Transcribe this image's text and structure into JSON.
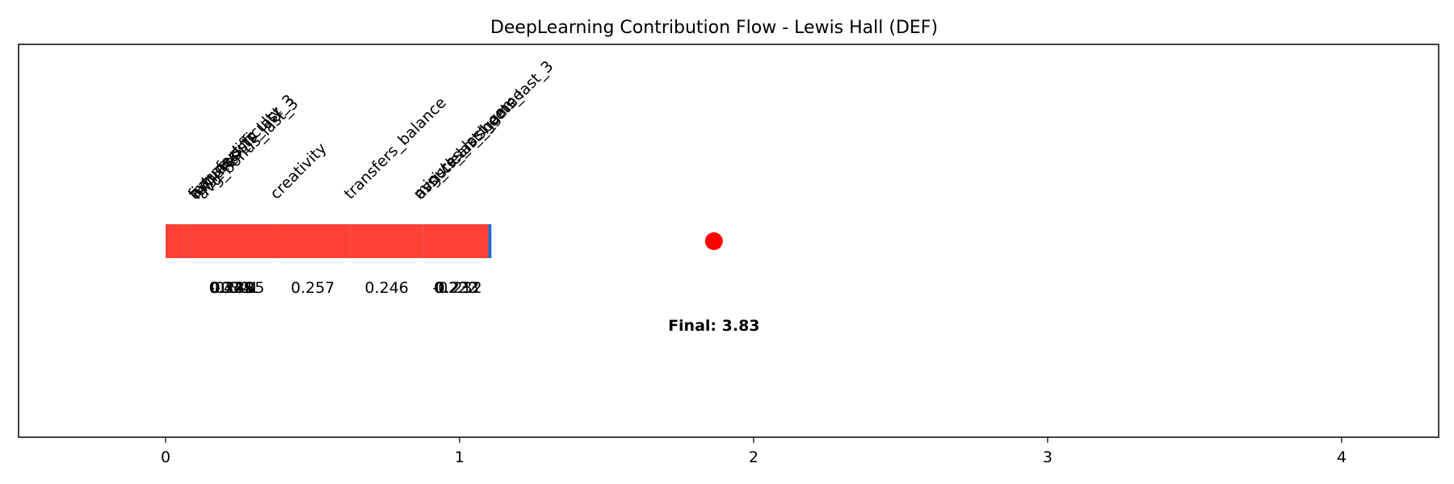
{
  "chart_data": {
    "type": "waterfall",
    "title": "DeepLearning Contribution Flow - Lewis Hall (DEF)",
    "xlabel": "",
    "ylabel": "",
    "xlim": [
      -0.5,
      4.33
    ],
    "xticks": [
      0,
      1,
      2,
      3,
      4
    ],
    "grid": false,
    "legend": "none",
    "start": 0,
    "steps": [
      {
        "feature": "fixture_difficulty",
        "value": 0.445
      },
      {
        "feature": "avg_bonus_last_3",
        "value": -0.385
      },
      {
        "feature": "transfers_in",
        "value": 0.324
      },
      {
        "feature": "minutes",
        "value": -0.301
      },
      {
        "feature": "avg_assists_last_3",
        "value": 0.289
      },
      {
        "feature": "creativity",
        "value": 0.257
      },
      {
        "feature": "transfers_balance",
        "value": 0.246
      },
      {
        "feature": "assists_last_game",
        "value": 0.233
      },
      {
        "feature": "avg_clean_sheets_last_3",
        "value": -0.232
      },
      {
        "feature": "minutes_last_game",
        "value": 0.222
      }
    ],
    "final_label": "Final: 3.83",
    "final_marker_x": 1.865,
    "colors": {
      "positive": "#FF4136",
      "negative": "#0074D9",
      "marker": "#FF0000"
    }
  }
}
